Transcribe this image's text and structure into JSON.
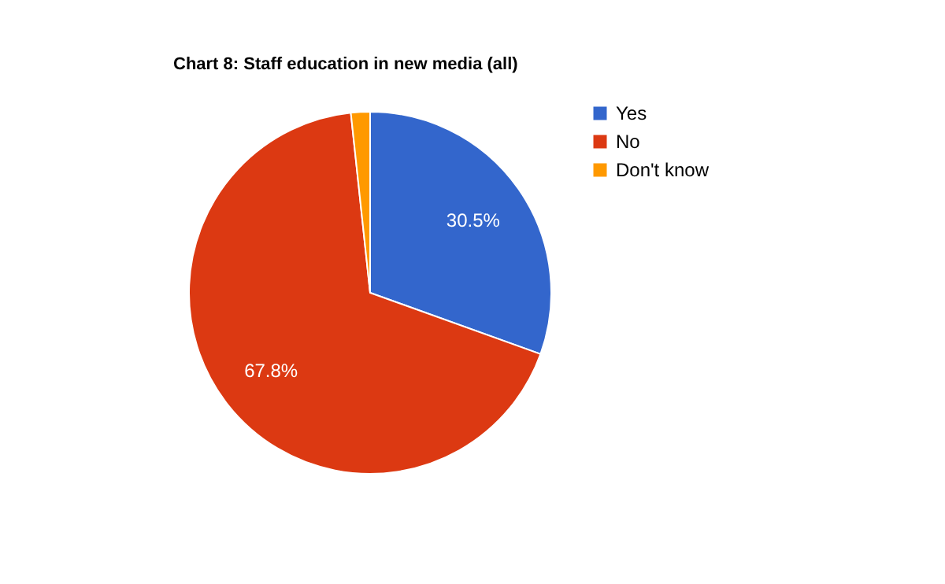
{
  "chart_data": {
    "type": "pie",
    "title": "Chart 8: Staff education in new media (all)",
    "categories": [
      "Yes",
      "No",
      "Don't know"
    ],
    "values": [
      30.5,
      67.8,
      1.7
    ],
    "colors": [
      "#3366cc",
      "#dc3912",
      "#ff9900"
    ],
    "value_labels": [
      "30.5%",
      "67.8%",
      null
    ],
    "legend": "right"
  }
}
